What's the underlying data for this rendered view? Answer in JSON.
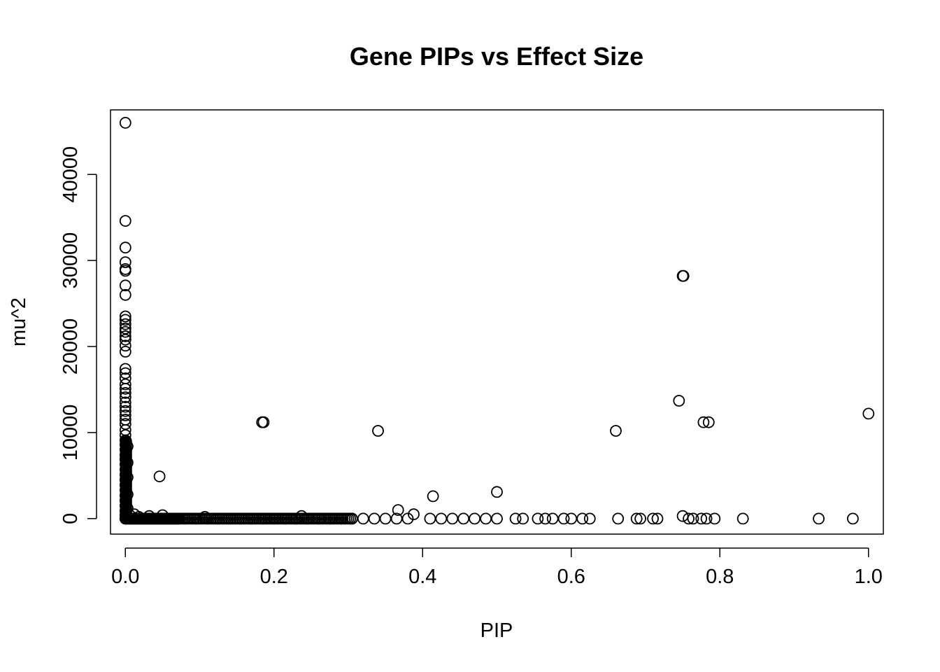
{
  "chart_data": {
    "type": "scatter",
    "title": "Gene PIPs vs Effect Size",
    "xlabel": "PIP",
    "ylabel": "mu^2",
    "xlim": [
      -0.02,
      1.02
    ],
    "ylim": [
      -1800,
      47500
    ],
    "x_ticks": [
      0.0,
      0.2,
      0.4,
      0.6,
      0.8,
      1.0
    ],
    "x_tick_labels": [
      "0.0",
      "0.2",
      "0.4",
      "0.6",
      "0.8",
      "1.0"
    ],
    "y_ticks": [
      0,
      10000,
      20000,
      30000,
      40000
    ],
    "y_tick_labels": [
      "0",
      "10000",
      "20000",
      "30000",
      "40000"
    ],
    "grid": false,
    "legend": "none",
    "marker": "open-circle",
    "point_color": "#000000",
    "series": [
      {
        "values": [
          {
            "x": 0.0,
            "y": 46000
          },
          {
            "x": 0.0,
            "y": 34600
          },
          {
            "x": 0.0,
            "y": 31500
          },
          {
            "x": 0.0,
            "y": 29800
          },
          {
            "x": 0.0,
            "y": 29000
          },
          {
            "x": 0.0,
            "y": 28800
          },
          {
            "x": 0.0,
            "y": 27100
          },
          {
            "x": 0.0,
            "y": 26000
          },
          {
            "x": 0.0,
            "y": 23500
          },
          {
            "x": 0.0,
            "y": 23100
          },
          {
            "x": 0.0,
            "y": 22600
          },
          {
            "x": 0.0,
            "y": 22100
          },
          {
            "x": 0.0,
            "y": 21700
          },
          {
            "x": 0.0,
            "y": 21200
          },
          {
            "x": 0.0,
            "y": 20800
          },
          {
            "x": 0.0,
            "y": 20100
          },
          {
            "x": 0.0,
            "y": 19400
          },
          {
            "x": 0.0,
            "y": 17400
          },
          {
            "x": 0.0,
            "y": 16900
          },
          {
            "x": 0.0,
            "y": 16300
          },
          {
            "x": 0.0,
            "y": 15600
          },
          {
            "x": 0.0,
            "y": 15100
          },
          {
            "x": 0.0,
            "y": 14600
          },
          {
            "x": 0.0,
            "y": 14100
          },
          {
            "x": 0.0,
            "y": 13500
          },
          {
            "x": 0.0,
            "y": 13000
          },
          {
            "x": 0.0,
            "y": 12500
          },
          {
            "x": 0.0,
            "y": 12000
          },
          {
            "x": 0.0,
            "y": 11500
          },
          {
            "x": 0.0,
            "y": 11000
          },
          {
            "x": 0.0,
            "y": 10300
          },
          {
            "x": 0.0,
            "y": 9700
          },
          {
            "x": 0.0,
            "y": 9100
          },
          {
            "x": 0.0,
            "y": 8600
          },
          {
            "x": 0.0,
            "y": 8000
          },
          {
            "x": 0.0,
            "y": 7400
          },
          {
            "x": 0.0,
            "y": 6900
          },
          {
            "x": 0.0,
            "y": 6300
          },
          {
            "x": 0.0,
            "y": 5700
          },
          {
            "x": 0.0,
            "y": 5100
          },
          {
            "x": 0.0,
            "y": 4500
          },
          {
            "x": 0.0,
            "y": 3900
          },
          {
            "x": 0.0,
            "y": 3300
          },
          {
            "x": 0.0,
            "y": 2700
          },
          {
            "x": 0.0,
            "y": 2100
          },
          {
            "x": 0.0,
            "y": 1500
          },
          {
            "x": 0.0,
            "y": 900
          },
          {
            "x": 0.0,
            "y": 400
          },
          {
            "x": 0.0,
            "y": 0
          },
          {
            "x": 0.003,
            "y": 8400
          },
          {
            "x": 0.003,
            "y": 6500
          },
          {
            "x": 0.003,
            "y": 4800
          },
          {
            "x": 0.003,
            "y": 2800
          },
          {
            "x": 0.003,
            "y": 1200
          },
          {
            "x": 0.006,
            "y": 400
          },
          {
            "x": 0.012,
            "y": 500
          },
          {
            "x": 0.018,
            "y": 200
          },
          {
            "x": 0.032,
            "y": 300
          },
          {
            "x": 0.046,
            "y": 4900
          },
          {
            "x": 0.05,
            "y": 400
          },
          {
            "x": 0.107,
            "y": 200
          },
          {
            "x": 0.184,
            "y": 11200
          },
          {
            "x": 0.186,
            "y": 11200
          },
          {
            "x": 0.237,
            "y": 300
          },
          {
            "x": 0.34,
            "y": 10200
          },
          {
            "x": 0.367,
            "y": 1000
          },
          {
            "x": 0.388,
            "y": 500
          },
          {
            "x": 0.414,
            "y": 2600
          },
          {
            "x": 0.5,
            "y": 3100
          },
          {
            "x": 0.66,
            "y": 10200
          },
          {
            "x": 0.745,
            "y": 13700
          },
          {
            "x": 0.75,
            "y": 28200
          },
          {
            "x": 0.751,
            "y": 28200
          },
          {
            "x": 0.75,
            "y": 300
          },
          {
            "x": 0.778,
            "y": 11200
          },
          {
            "x": 0.785,
            "y": 11200
          },
          {
            "x": 1.0,
            "y": 12200
          },
          {
            "x": 0.02,
            "y": 0
          },
          {
            "x": 0.035,
            "y": 0
          },
          {
            "x": 0.05,
            "y": 0
          },
          {
            "x": 0.065,
            "y": 0
          },
          {
            "x": 0.08,
            "y": 0
          },
          {
            "x": 0.095,
            "y": 0
          },
          {
            "x": 0.11,
            "y": 0
          },
          {
            "x": 0.125,
            "y": 0
          },
          {
            "x": 0.14,
            "y": 0
          },
          {
            "x": 0.155,
            "y": 0
          },
          {
            "x": 0.17,
            "y": 0
          },
          {
            "x": 0.185,
            "y": 0
          },
          {
            "x": 0.2,
            "y": 0
          },
          {
            "x": 0.215,
            "y": 0
          },
          {
            "x": 0.23,
            "y": 0
          },
          {
            "x": 0.245,
            "y": 0
          },
          {
            "x": 0.26,
            "y": 0
          },
          {
            "x": 0.275,
            "y": 0
          },
          {
            "x": 0.29,
            "y": 0
          },
          {
            "x": 0.305,
            "y": 0
          },
          {
            "x": 0.32,
            "y": 0
          },
          {
            "x": 0.335,
            "y": 0
          },
          {
            "x": 0.35,
            "y": 0
          },
          {
            "x": 0.365,
            "y": 0
          },
          {
            "x": 0.38,
            "y": 0
          },
          {
            "x": 0.41,
            "y": 0
          },
          {
            "x": 0.425,
            "y": 0
          },
          {
            "x": 0.44,
            "y": 0
          },
          {
            "x": 0.455,
            "y": 0
          },
          {
            "x": 0.47,
            "y": 0
          },
          {
            "x": 0.485,
            "y": 0
          },
          {
            "x": 0.5,
            "y": 0
          },
          {
            "x": 0.525,
            "y": 0
          },
          {
            "x": 0.535,
            "y": 0
          },
          {
            "x": 0.555,
            "y": 0
          },
          {
            "x": 0.565,
            "y": 0
          },
          {
            "x": 0.575,
            "y": 0
          },
          {
            "x": 0.59,
            "y": 0
          },
          {
            "x": 0.6,
            "y": 0
          },
          {
            "x": 0.615,
            "y": 0
          },
          {
            "x": 0.625,
            "y": 0
          },
          {
            "x": 0.663,
            "y": 0
          },
          {
            "x": 0.688,
            "y": 0
          },
          {
            "x": 0.693,
            "y": 0
          },
          {
            "x": 0.71,
            "y": 0
          },
          {
            "x": 0.716,
            "y": 0
          },
          {
            "x": 0.758,
            "y": 0
          },
          {
            "x": 0.764,
            "y": 0
          },
          {
            "x": 0.775,
            "y": 0
          },
          {
            "x": 0.782,
            "y": 0
          },
          {
            "x": 0.793,
            "y": 0
          },
          {
            "x": 0.831,
            "y": 0
          },
          {
            "x": 0.933,
            "y": 0
          },
          {
            "x": 0.979,
            "y": 0
          }
        ]
      }
    ]
  }
}
